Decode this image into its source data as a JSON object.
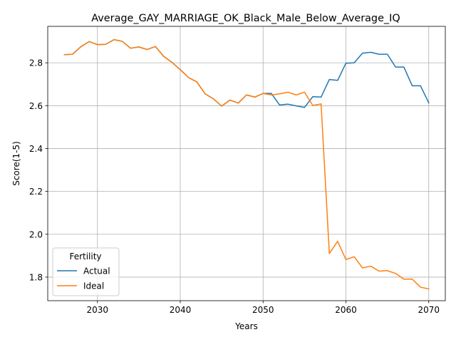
{
  "chart_data": {
    "type": "line",
    "title": "Average_GAY_MARRIAGE_OK_Black_Male_Below_Average_IQ",
    "xlabel": "Years",
    "ylabel": "Score(1-5)",
    "xlim": [
      2024,
      2072
    ],
    "ylim": [
      1.69,
      2.97
    ],
    "xticks": [
      2030,
      2040,
      2050,
      2060,
      2070
    ],
    "yticks": [
      1.8,
      2.0,
      2.2,
      2.4,
      2.6,
      2.8
    ],
    "ytick_labels": [
      "1.8",
      "2.0",
      "2.2",
      "2.4",
      "2.6",
      "2.8"
    ],
    "grid": true,
    "legend": {
      "title": "Fertility",
      "placement": "lower-left"
    },
    "x": [
      2026,
      2027,
      2028,
      2029,
      2030,
      2031,
      2032,
      2033,
      2034,
      2035,
      2036,
      2037,
      2038,
      2039,
      2040,
      2041,
      2042,
      2043,
      2044,
      2045,
      2046,
      2047,
      2048,
      2049,
      2050,
      2051,
      2052,
      2053,
      2054,
      2055,
      2056,
      2057,
      2058,
      2059,
      2060,
      2061,
      2062,
      2063,
      2064,
      2065,
      2066,
      2067,
      2068,
      2069,
      2070
    ],
    "series": [
      {
        "name": "Actual",
        "color": "#1f77b4",
        "values": [
          2.838,
          2.84,
          2.875,
          2.899,
          2.885,
          2.886,
          2.908,
          2.9,
          2.868,
          2.874,
          2.862,
          2.876,
          2.83,
          2.802,
          2.768,
          2.731,
          2.711,
          2.655,
          2.632,
          2.598,
          2.626,
          2.612,
          2.65,
          2.64,
          2.657,
          2.657,
          2.603,
          2.607,
          2.599,
          2.592,
          2.642,
          2.64,
          2.722,
          2.718,
          2.798,
          2.8,
          2.845,
          2.849,
          2.84,
          2.84,
          2.78,
          2.78,
          2.693,
          2.693,
          2.613
        ]
      },
      {
        "name": "Ideal",
        "color": "#ff7f0e",
        "values": [
          2.838,
          2.84,
          2.875,
          2.899,
          2.885,
          2.886,
          2.908,
          2.9,
          2.868,
          2.874,
          2.862,
          2.876,
          2.83,
          2.802,
          2.768,
          2.731,
          2.711,
          2.655,
          2.632,
          2.598,
          2.626,
          2.612,
          2.65,
          2.64,
          2.657,
          2.65,
          2.655,
          2.663,
          2.65,
          2.663,
          2.601,
          2.608,
          1.91,
          1.967,
          1.882,
          1.895,
          1.843,
          1.851,
          1.828,
          1.83,
          1.817,
          1.79,
          1.791,
          1.753,
          1.745
        ]
      }
    ]
  }
}
